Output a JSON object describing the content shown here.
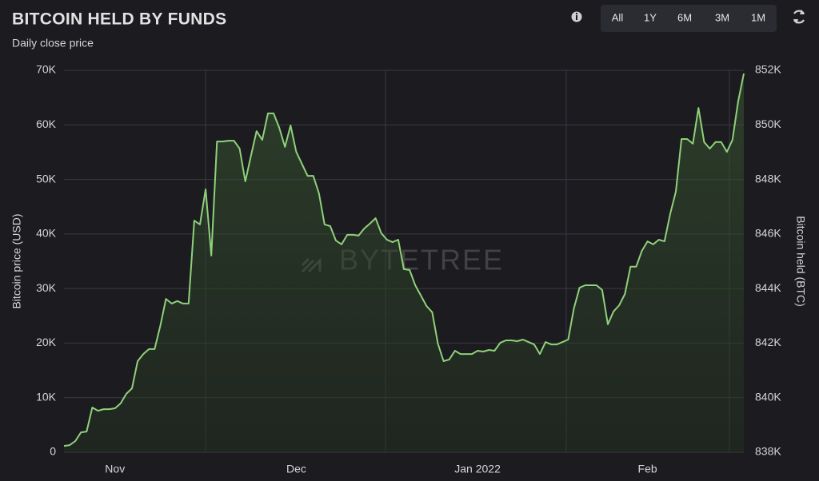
{
  "header": {
    "title": "BITCOIN HELD BY FUNDS",
    "subtitle": "Daily close price"
  },
  "toolbar": {
    "range_buttons": [
      "All",
      "1Y",
      "6M",
      "3M",
      "1M"
    ]
  },
  "watermark": "BYTETREE",
  "chart_data": {
    "type": "area",
    "y_label": "Bitcoin price (USD)",
    "y2_label": "Bitcoin held (BTC)",
    "categories": [
      null,
      null,
      null,
      null,
      null,
      null,
      null,
      null,
      null,
      "Nov",
      null,
      null,
      null,
      null,
      null,
      null,
      null,
      null,
      null,
      null,
      null,
      null,
      null,
      null,
      null,
      null,
      null,
      null,
      null,
      null,
      null,
      null,
      null,
      null,
      null,
      null,
      null,
      null,
      null,
      null,
      null,
      "Dec",
      null,
      null,
      null,
      null,
      null,
      null,
      null,
      null,
      null,
      null,
      null,
      null,
      null,
      null,
      null,
      null,
      null,
      null,
      null,
      null,
      null,
      null,
      null,
      null,
      null,
      null,
      null,
      null,
      null,
      null,
      null,
      "Jan 2022",
      null,
      null,
      null,
      null,
      null,
      null,
      null,
      null,
      null,
      null,
      null,
      null,
      null,
      null,
      null,
      null,
      null,
      null,
      null,
      null,
      null,
      null,
      null,
      null,
      null,
      null,
      null,
      null,
      null,
      "Feb",
      null,
      null,
      null,
      null,
      null,
      null,
      null,
      null,
      null,
      null,
      null,
      null,
      null,
      null,
      null,
      null,
      null
    ],
    "series": [
      {
        "axis": "y2",
        "color": "#8fd17a",
        "values": [
          838230,
          838260,
          838410,
          838730,
          838760,
          839640,
          839520,
          839580,
          839580,
          839610,
          839790,
          840140,
          840340,
          841340,
          841600,
          841780,
          841780,
          842630,
          843620,
          843450,
          843540,
          843450,
          843450,
          846490,
          846350,
          847640,
          845210,
          849390,
          849390,
          849420,
          849420,
          849130,
          847930,
          848870,
          849770,
          849450,
          850420,
          850420,
          849890,
          849190,
          849980,
          849010,
          848570,
          848130,
          848130,
          847490,
          846350,
          846290,
          845760,
          845620,
          845970,
          845970,
          845940,
          846200,
          846380,
          846580,
          846030,
          845790,
          845700,
          845790,
          844710,
          844680,
          844120,
          843740,
          843360,
          843130,
          841980,
          841340,
          841400,
          841720,
          841600,
          841600,
          841600,
          841720,
          841690,
          841750,
          841720,
          842010,
          842100,
          842100,
          842070,
          842130,
          842040,
          841950,
          841600,
          842040,
          841950,
          841950,
          842040,
          842130,
          843270,
          844030,
          844120,
          844120,
          844120,
          843950,
          842690,
          843160,
          843390,
          843800,
          844800,
          844800,
          845380,
          845730,
          845620,
          845790,
          845730,
          846730,
          847550,
          849480,
          849480,
          849310,
          850620,
          849370,
          849130,
          849370,
          849370,
          849010,
          849450,
          850860,
          851880
        ]
      }
    ],
    "ylim": [
      0,
      70000
    ],
    "yticks": [
      0,
      {
        "value": 10000,
        "label": "10K"
      },
      {
        "value": 20000,
        "label": "20K"
      },
      {
        "value": 30000,
        "label": "30K"
      },
      {
        "value": 40000,
        "label": "40K"
      },
      {
        "value": 50000,
        "label": "50K"
      },
      {
        "value": 60000,
        "label": "60K"
      },
      {
        "value": 70000,
        "label": "70K"
      }
    ],
    "y2lim": [
      838000,
      852000
    ],
    "y2ticks": [
      {
        "value": 838000,
        "label": "838K"
      },
      {
        "value": 840000,
        "label": "840K"
      },
      {
        "value": 842000,
        "label": "842K"
      },
      {
        "value": 844000,
        "label": "844K"
      },
      {
        "value": 846000,
        "label": "846K"
      },
      {
        "value": 848000,
        "label": "848K"
      },
      {
        "value": 850000,
        "label": "850K"
      },
      {
        "value": 852000,
        "label": "852K"
      }
    ],
    "grid": true
  }
}
